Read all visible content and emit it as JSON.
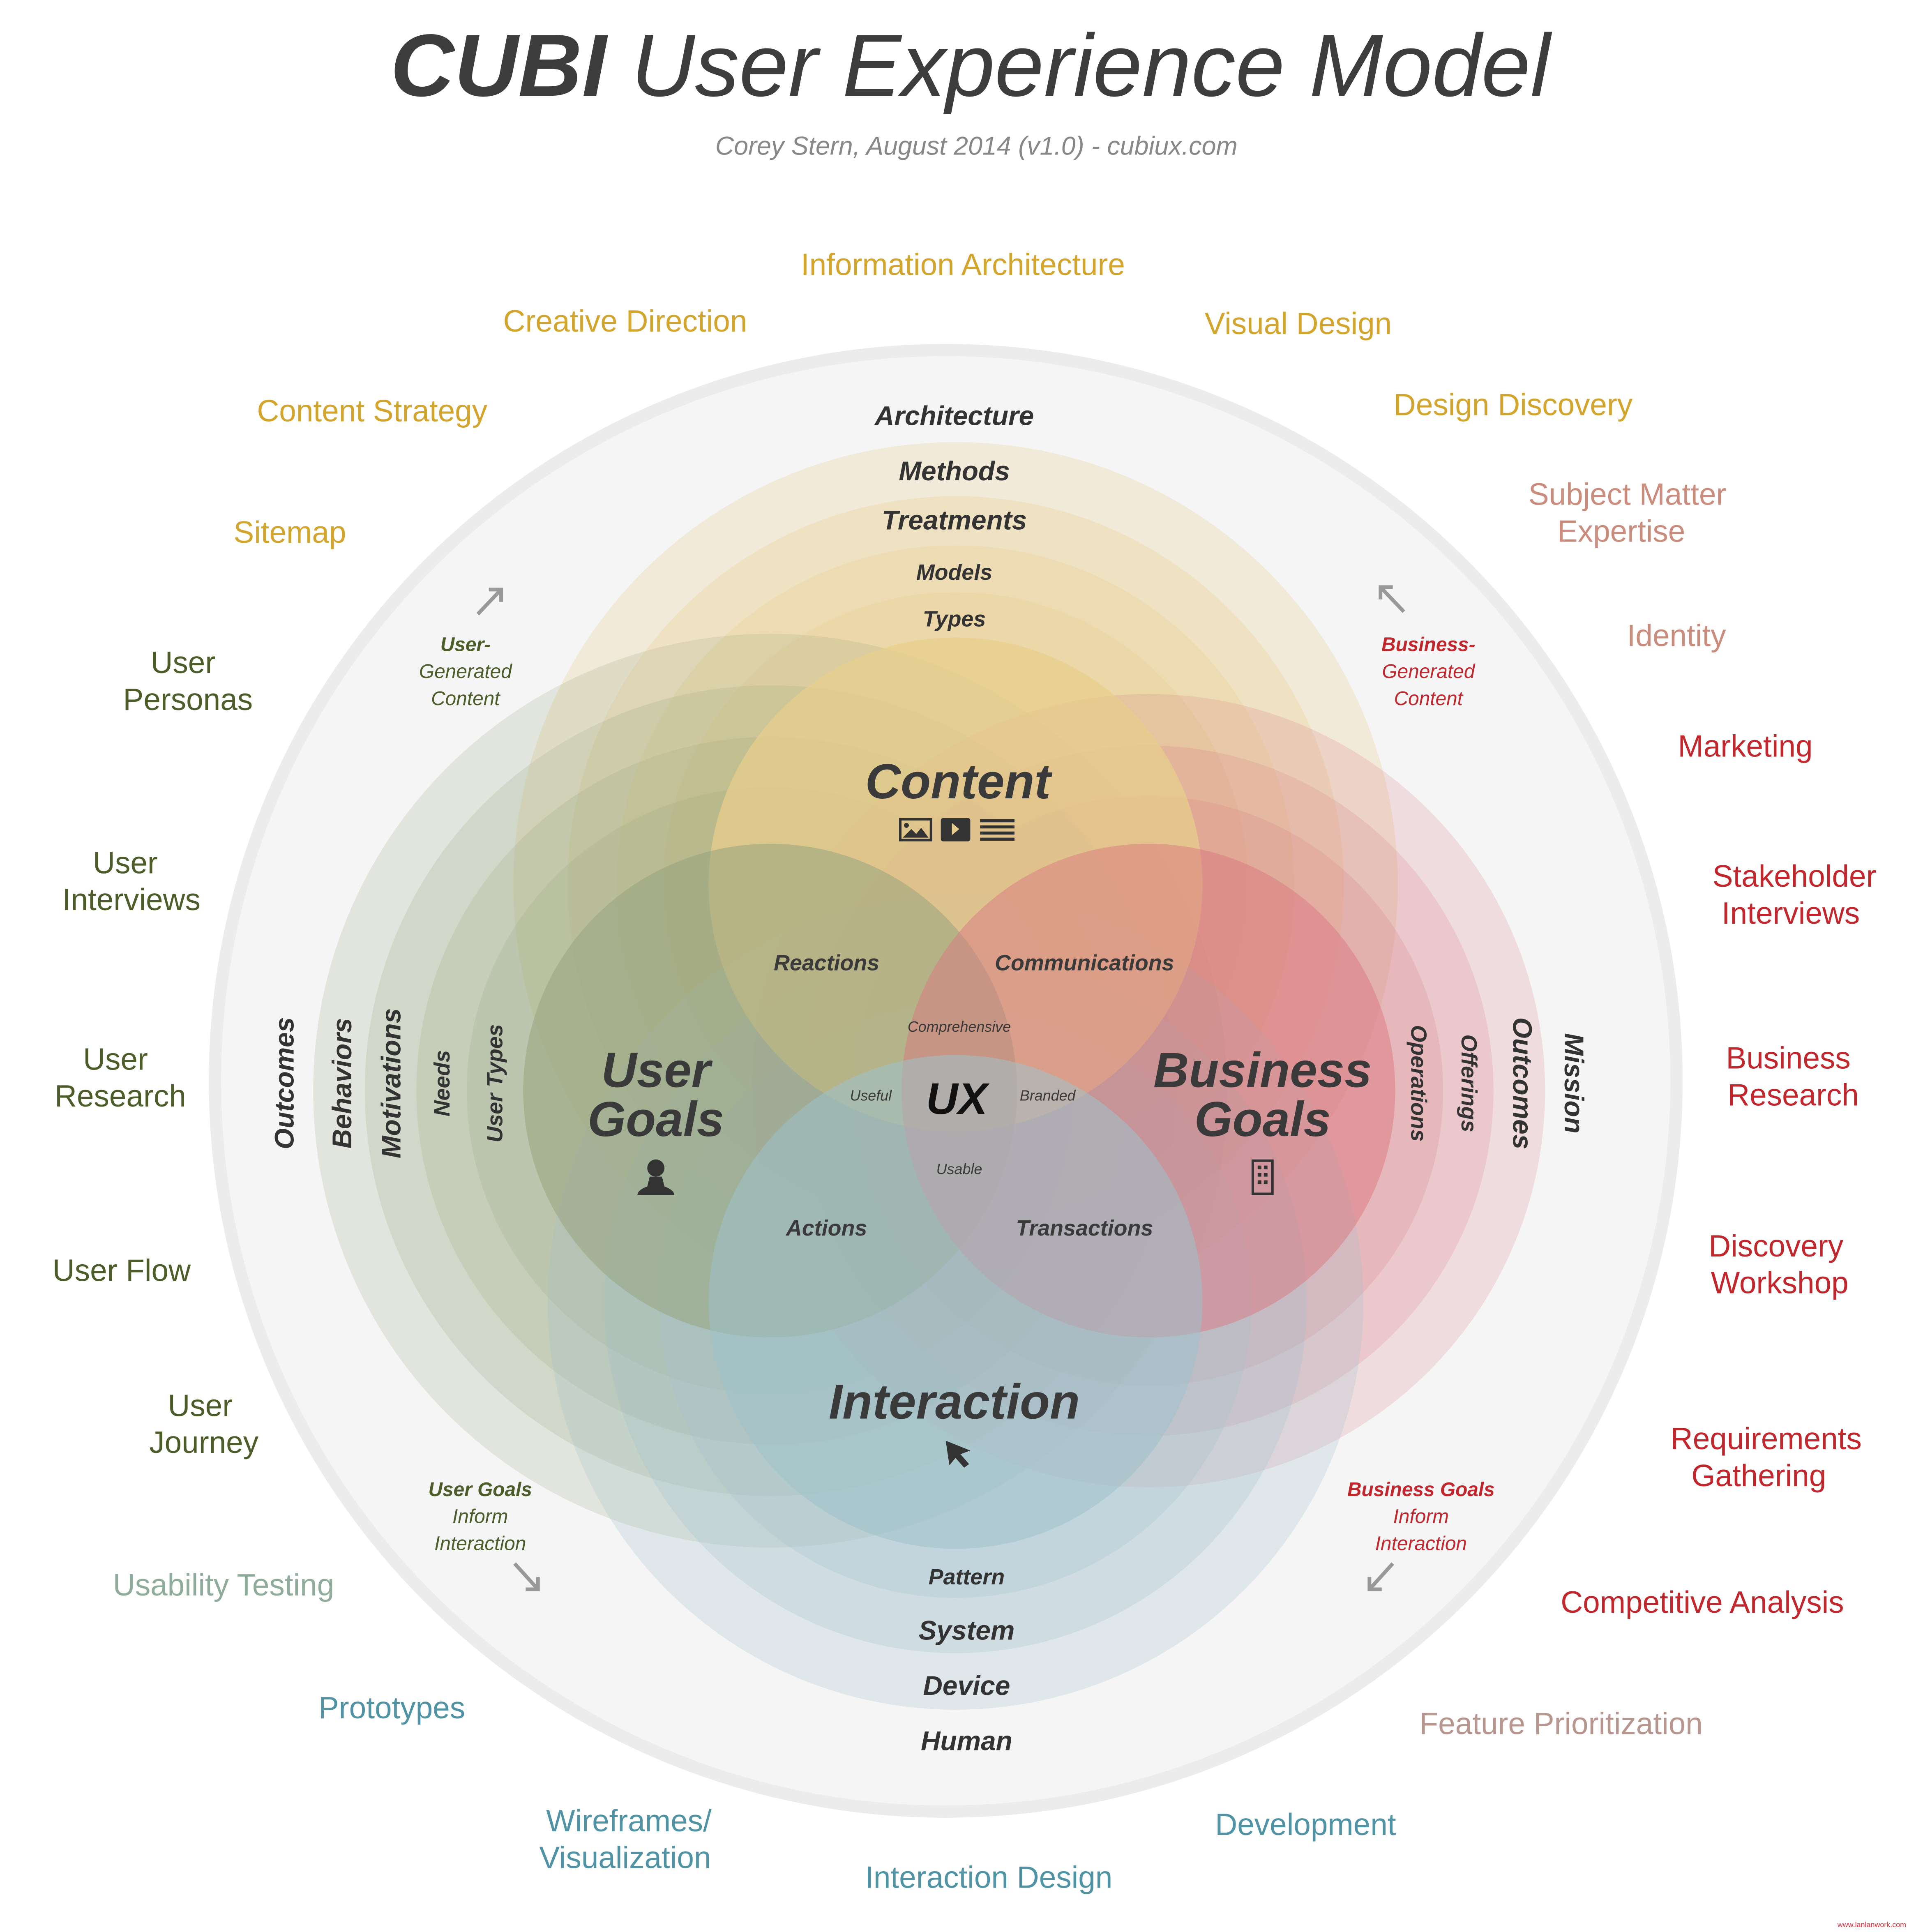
{
  "title": {
    "bold": "CUBI",
    "rest": " User Experience Model"
  },
  "subtitle": "Corey Stern, August 2014  (v1.0)  - cubiux.com",
  "colors": {
    "content": "#e8cd8c",
    "user_goals": "#98a47f",
    "business_goals": "#d97880",
    "interaction": "#9ec1cb",
    "outer": "#f4f4f4"
  },
  "outer_labels": {
    "information_architecture": "Information Architecture",
    "creative_direction": "Creative Direction",
    "visual_design": "Visual Design",
    "content_strategy": "Content Strategy",
    "design_discovery": "Design Discovery",
    "subject_matter": [
      "Subject Matter",
      "Expertise"
    ],
    "sitemap": "Sitemap",
    "identity": "Identity",
    "user_personas": [
      "User",
      "Personas"
    ],
    "marketing": "Marketing",
    "user_interviews": [
      "User",
      "Interviews"
    ],
    "stakeholder_interviews": [
      "Stakeholder",
      "Interviews"
    ],
    "user_research": [
      "User",
      "Research"
    ],
    "business_research": [
      "Business",
      "Research"
    ],
    "user_flow": "User Flow",
    "discovery_workshop": [
      "Discovery",
      "Workshop"
    ],
    "user_journey": [
      "User",
      "Journey"
    ],
    "requirements_gathering": [
      "Requirements",
      "Gathering"
    ],
    "usability_testing": "Usability Testing",
    "competitive_analysis": "Competitive Analysis",
    "prototypes": "Prototypes",
    "feature_prioritization": "Feature Prioritization",
    "wireframes": [
      "Wireframes/",
      "Visualization"
    ],
    "development": "Development",
    "interaction_design": "Interaction Design"
  },
  "annotations": {
    "user_generated": [
      "User-",
      "Generated",
      "Content"
    ],
    "business_generated": [
      "Business-",
      "Generated",
      "Content"
    ],
    "user_inform": [
      "User Goals",
      "Inform",
      "Interaction"
    ],
    "business_inform": [
      "Business Goals",
      "Inform",
      "Interaction"
    ]
  },
  "content_rings": [
    "Architecture",
    "Methods",
    "Treatments",
    "Models",
    "Types"
  ],
  "interaction_rings": [
    "Pattern",
    "System",
    "Device",
    "Human"
  ],
  "user_rings": [
    "Outcomes",
    "Behaviors",
    "Motivations",
    "Needs",
    "User Types"
  ],
  "business_rings": [
    "Operations",
    "Offerings",
    "Outcomes",
    "Mission"
  ],
  "circles": {
    "content": "Content",
    "user_goals": [
      "User",
      "Goals"
    ],
    "business_goals": [
      "Business",
      "Goals"
    ],
    "interaction": "Interaction"
  },
  "intersections": {
    "reactions": "Reactions",
    "communications": "Communications",
    "actions": "Actions",
    "transactions": "Transactions",
    "comprehensive": "Comprehensive",
    "useful": "Useful",
    "branded": "Branded",
    "usable": "Usable",
    "ux": "UX"
  },
  "icons": [
    "image-icon",
    "video-icon",
    "text-icon",
    "user-icon",
    "building-icon",
    "cursor-icon",
    "arrow-icon"
  ],
  "watermark": "www.lanlanwork.com"
}
